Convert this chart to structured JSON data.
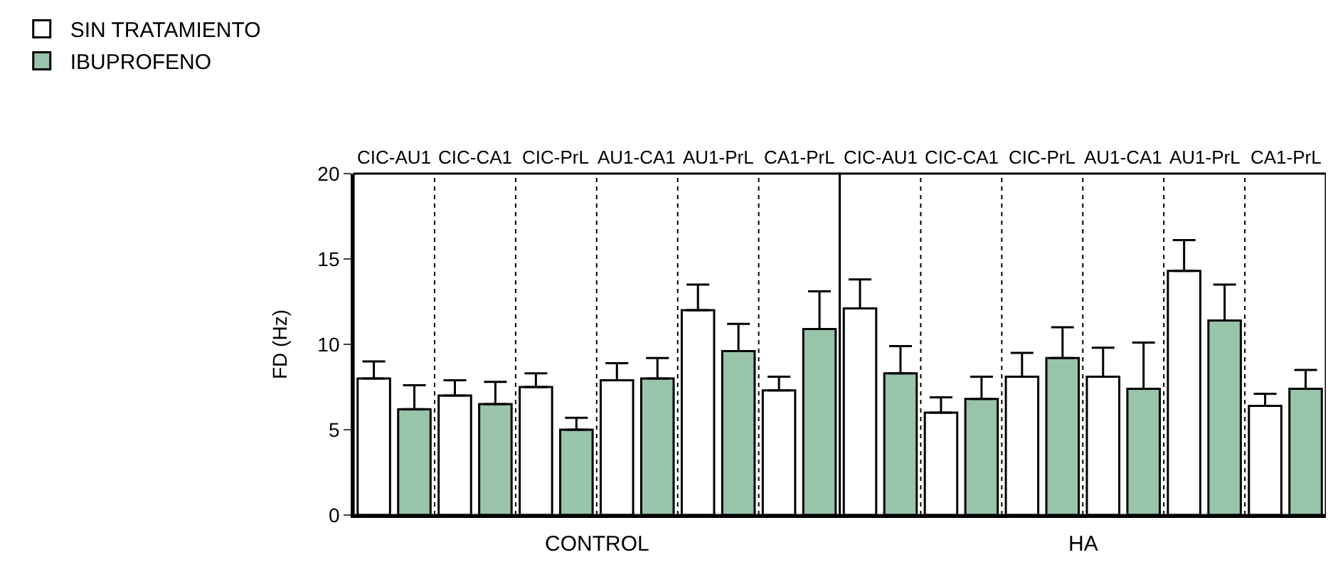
{
  "chart_data": {
    "type": "bar",
    "ylabel": "FD (Hz)",
    "categories": [
      "CIC-AU1",
      "CIC-CA1",
      "CIC-PrL",
      "AU1-CA1",
      "AU1-PrL",
      "CA1-PrL",
      "CIC-AU1",
      "CIC-CA1",
      "CIC-PrL",
      "AU1-CA1",
      "AU1-PrL",
      "CA1-PrL"
    ],
    "series": [
      {
        "name": "SIN TRATAMIENTO",
        "color": "#ffffff",
        "values": [
          8.0,
          7.0,
          7.5,
          7.9,
          12.0,
          7.3,
          12.1,
          6.0,
          8.1,
          8.1,
          14.3,
          6.4
        ],
        "errors": [
          [
            8.0,
            9.0
          ],
          [
            7.0,
            7.9
          ],
          [
            7.5,
            8.3
          ],
          [
            7.9,
            8.9
          ],
          [
            12.0,
            13.5
          ],
          [
            7.3,
            8.1
          ],
          [
            12.1,
            13.8
          ],
          [
            6.0,
            6.9
          ],
          [
            8.1,
            9.5
          ],
          [
            8.1,
            9.8
          ],
          [
            14.3,
            16.1
          ],
          [
            6.4,
            7.1
          ]
        ]
      },
      {
        "name": "IBUPROFENO",
        "color": "#98c4aa",
        "values": [
          6.2,
          6.5,
          5.0,
          8.0,
          9.6,
          10.9,
          8.3,
          6.8,
          9.2,
          7.4,
          11.4,
          7.4
        ],
        "errors": [
          [
            6.2,
            7.6
          ],
          [
            6.5,
            7.8
          ],
          [
            5.0,
            5.7
          ],
          [
            8.0,
            9.2
          ],
          [
            9.6,
            11.2
          ],
          [
            10.9,
            13.1
          ],
          [
            8.3,
            9.9
          ],
          [
            6.8,
            8.1
          ],
          [
            9.2,
            11.0
          ],
          [
            7.4,
            10.1
          ],
          [
            11.4,
            13.5
          ],
          [
            7.4,
            8.5
          ]
        ]
      }
    ],
    "annotations": [
      "CONTROL",
      "HA"
    ],
    "ylim": [
      0,
      20
    ],
    "yticks": [
      0,
      5,
      10,
      15,
      20
    ],
    "legend": "top left"
  }
}
